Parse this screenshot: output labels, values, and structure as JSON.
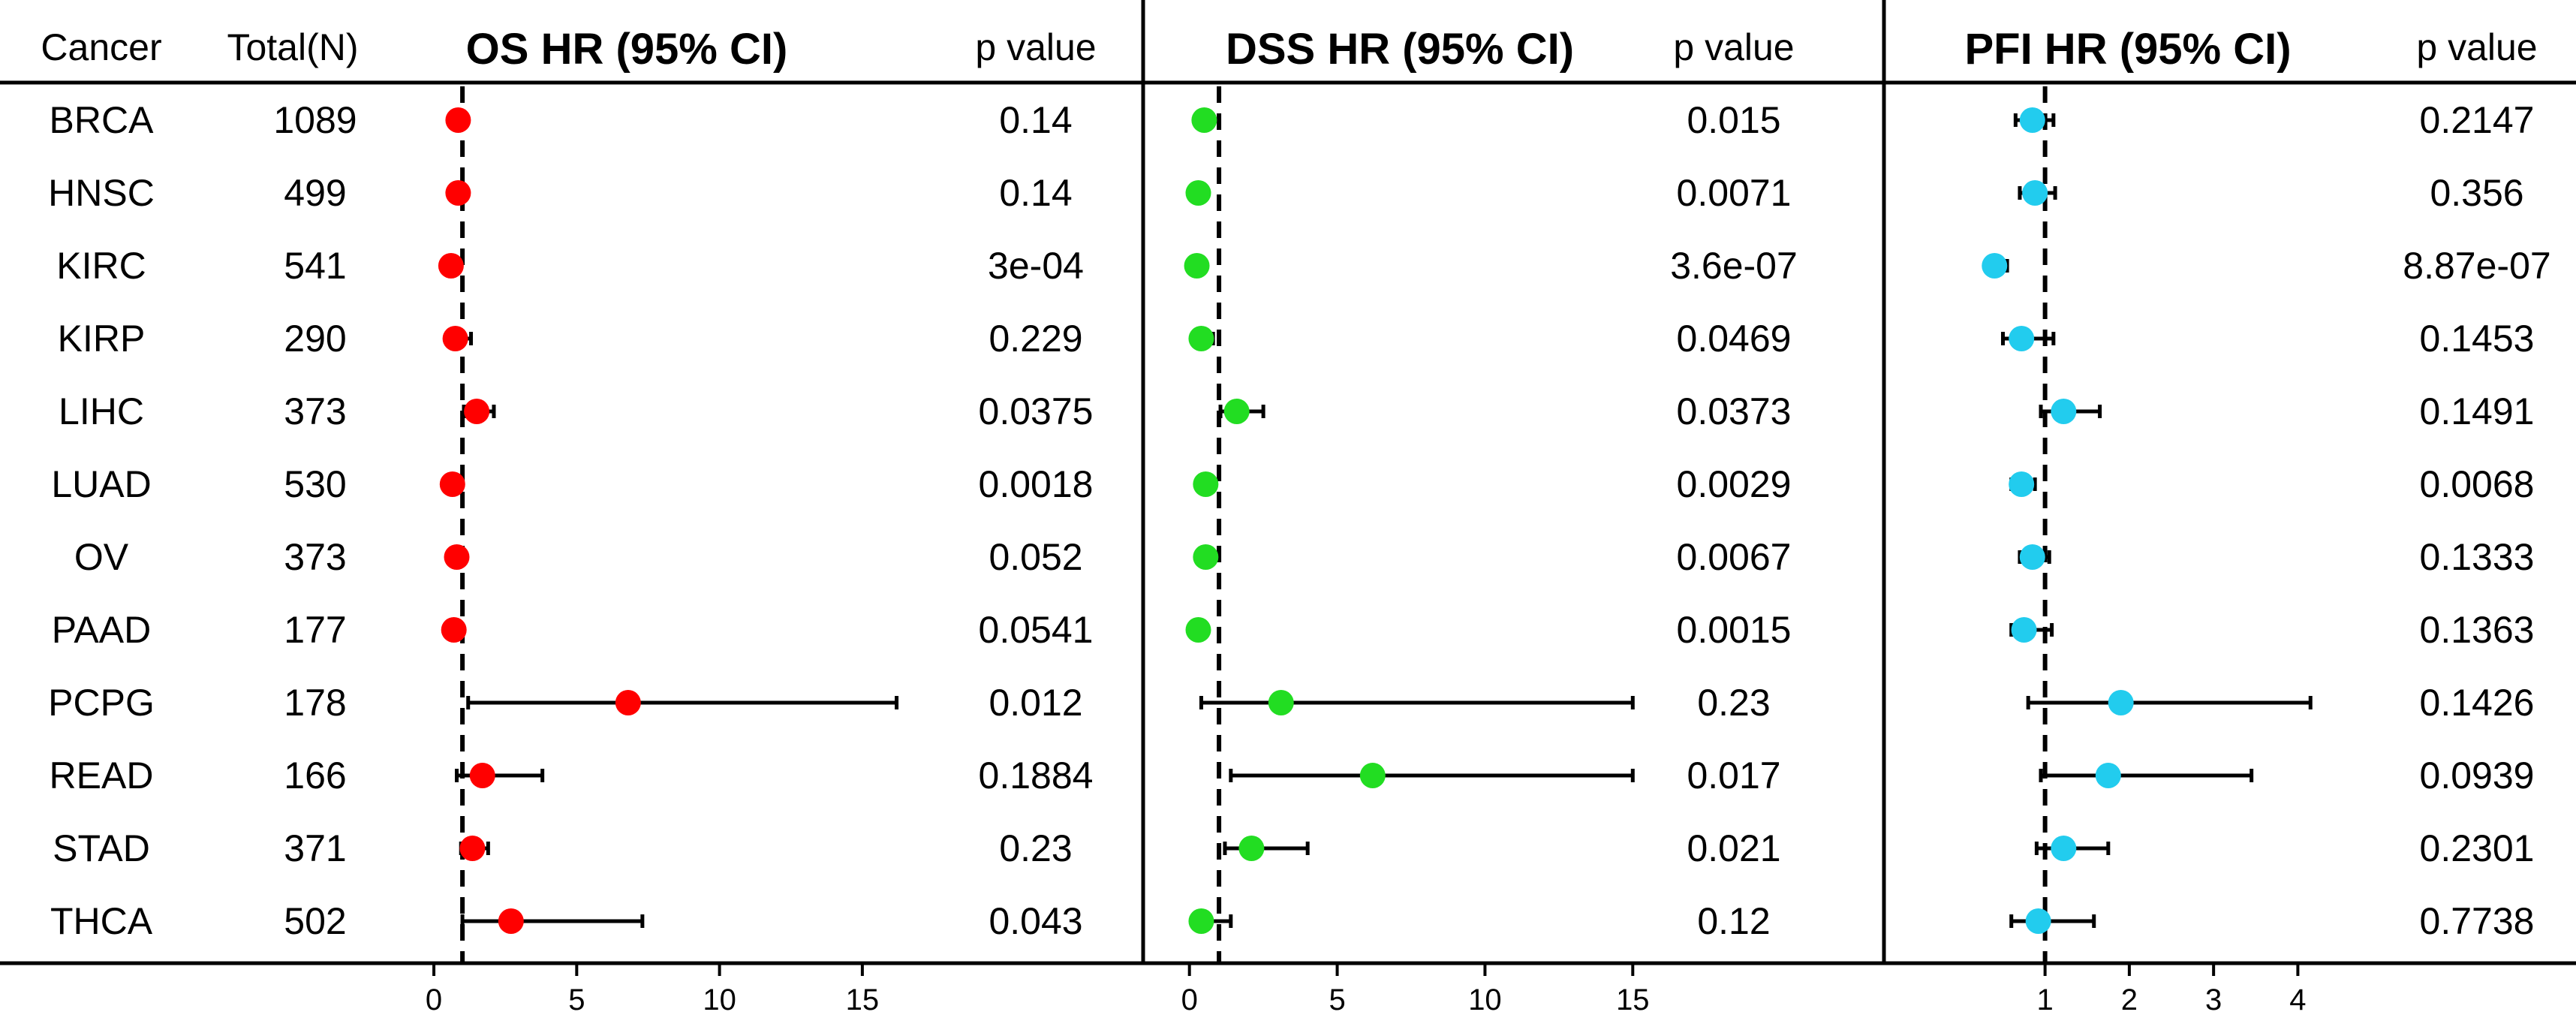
{
  "chart_data": {
    "type": "forest",
    "columns": {
      "cancer": "Cancer",
      "total": "Total(N)",
      "p_value": "p value"
    },
    "rows": [
      {
        "cancer": "BRCA",
        "n": "1089"
      },
      {
        "cancer": "HNSC",
        "n": "499"
      },
      {
        "cancer": "KIRC",
        "n": "541"
      },
      {
        "cancer": "KIRP",
        "n": "290"
      },
      {
        "cancer": "LIHC",
        "n": "373"
      },
      {
        "cancer": "LUAD",
        "n": "530"
      },
      {
        "cancer": "OV",
        "n": "373"
      },
      {
        "cancer": "PAAD",
        "n": "177"
      },
      {
        "cancer": "PCPG",
        "n": "178"
      },
      {
        "cancer": "READ",
        "n": "166"
      },
      {
        "cancer": "STAD",
        "n": "371"
      },
      {
        "cancer": "THCA",
        "n": "502"
      }
    ],
    "panels": [
      {
        "id": "os",
        "title": "OS HR (95% CI)",
        "color": "#ff0000",
        "xlim": [
          -1,
          17
        ],
        "ticks": [
          "0",
          "5",
          "10",
          "15"
        ],
        "tick_values": [
          0,
          5,
          10,
          15
        ],
        "reference_line": 1,
        "hr": [
          0.85,
          0.85,
          0.6,
          0.75,
          1.5,
          0.65,
          0.8,
          0.7,
          6.8,
          1.7,
          1.35,
          2.7
        ],
        "ci_low": [
          0.6,
          0.6,
          0.5,
          0.55,
          1.05,
          0.5,
          0.6,
          0.5,
          1.2,
          0.8,
          0.95,
          1.0
        ],
        "ci_high": [
          1.1,
          1.1,
          0.75,
          1.3,
          2.1,
          0.85,
          1.05,
          1.0,
          16.2,
          3.8,
          1.9,
          7.3
        ],
        "p_values": [
          "0.14",
          "0.14",
          "3e-04",
          "0.229",
          "0.0375",
          "0.0018",
          "0.052",
          "0.0541",
          "0.012",
          "0.1884",
          "0.23",
          "0.043"
        ]
      },
      {
        "id": "dss",
        "title": "DSS HR (95% CI)",
        "color": "#22dd22",
        "xlim": [
          -0.5,
          15.5
        ],
        "ticks": [
          "0",
          "5",
          "10",
          "15"
        ],
        "tick_values": [
          0,
          5,
          10,
          15
        ],
        "reference_line": 1,
        "hr": [
          0.5,
          0.3,
          0.25,
          0.4,
          1.6,
          0.55,
          0.55,
          0.3,
          3.1,
          6.2,
          2.1,
          0.4
        ],
        "ci_low": [
          0.35,
          0.2,
          0.15,
          0.25,
          1.05,
          0.4,
          0.4,
          0.2,
          0.4,
          1.4,
          1.2,
          0.2
        ],
        "ci_high": [
          0.8,
          0.6,
          0.4,
          0.8,
          2.5,
          0.8,
          0.8,
          0.6,
          15.0,
          15.0,
          4.0,
          1.4
        ],
        "p_values": [
          "0.015",
          "0.0071",
          "3.6e-07",
          "0.0469",
          "0.0373",
          "0.0029",
          "0.0067",
          "0.0015",
          "0.23",
          "0.017",
          "0.021",
          "0.12"
        ]
      },
      {
        "id": "pfi",
        "title": "PFI HR (95% CI)",
        "color": "#22ccee",
        "xlim": [
          -0.6,
          4.7
        ],
        "ticks": [
          "1",
          "2",
          "3",
          "4"
        ],
        "tick_values": [
          1,
          2,
          3,
          4
        ],
        "reference_line": 1,
        "hr": [
          0.85,
          0.88,
          0.4,
          0.72,
          1.22,
          0.72,
          0.85,
          0.75,
          1.9,
          1.75,
          1.22,
          0.92
        ],
        "ci_low": [
          0.65,
          0.7,
          0.3,
          0.5,
          0.95,
          0.6,
          0.7,
          0.6,
          0.8,
          0.95,
          0.9,
          0.6
        ],
        "ci_high": [
          1.1,
          1.12,
          0.55,
          1.1,
          1.65,
          0.88,
          1.05,
          1.08,
          4.15,
          3.45,
          1.75,
          1.58
        ],
        "p_values": [
          "0.2147",
          "0.356",
          "8.87e-07",
          "0.1453",
          "0.1491",
          "0.0068",
          "0.1333",
          "0.1363",
          "0.1426",
          "0.0939",
          "0.2301",
          "0.7738"
        ]
      }
    ]
  }
}
